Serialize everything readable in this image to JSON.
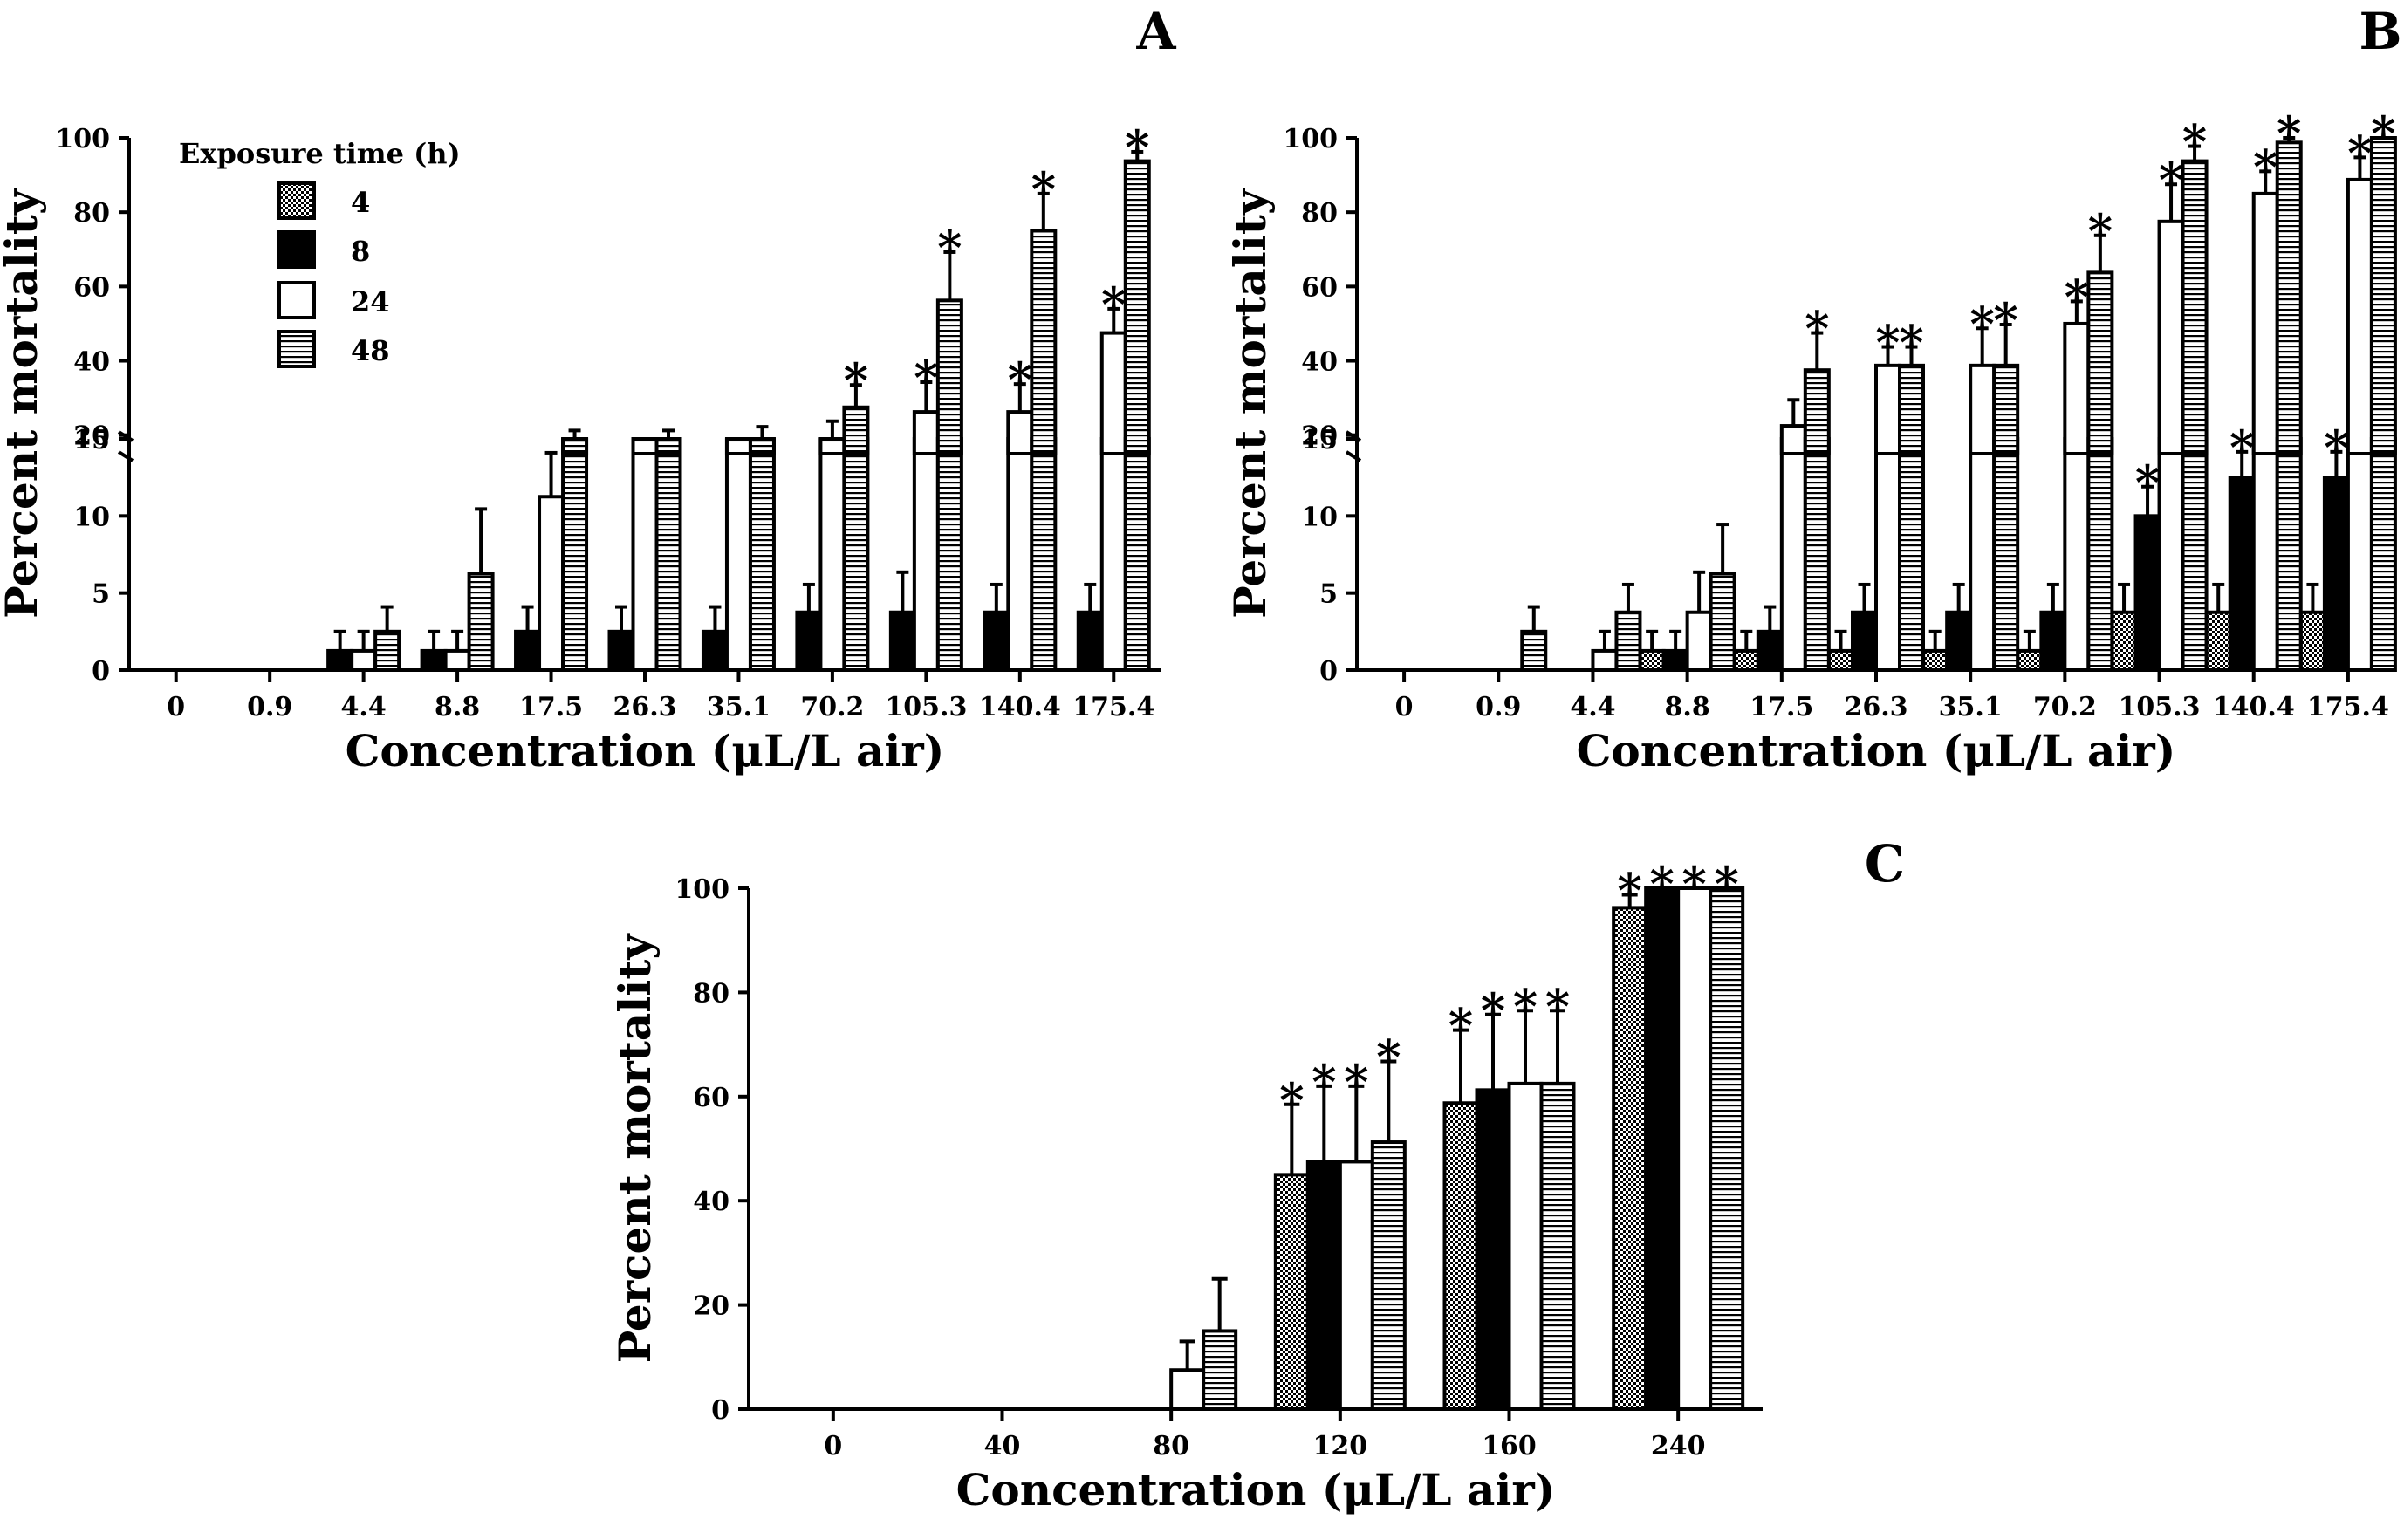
{
  "figure": {
    "legend_title": "Exposure time (h)",
    "series_names": [
      "4",
      "8",
      "24",
      "48"
    ]
  },
  "colors": {
    "ink": "#000000",
    "background": "#ffffff"
  },
  "chart_data": [
    {
      "panel": "A",
      "type": "bar",
      "ylabel": "Percent mortality",
      "xlabel": "Concentration (μL/L air)",
      "y_axis_break": {
        "lower_range": [
          0,
          15
        ],
        "upper_range": [
          15,
          100
        ]
      },
      "lower_ticks": [
        "0",
        "5",
        "10",
        "15"
      ],
      "upper_ticks": [
        "20",
        "40",
        "60",
        "80",
        "100"
      ],
      "categories": [
        "0",
        "0.9",
        "4.4",
        "8.8",
        "17.5",
        "26.3",
        "35.1",
        "70.2",
        "105.3",
        "140.4",
        "175.4"
      ],
      "series": [
        {
          "name": "8",
          "values": [
            0,
            0,
            1.25,
            1.25,
            2.5,
            2.5,
            2.5,
            3.75,
            3.75,
            3.75,
            3.75
          ],
          "errors": [
            0,
            0,
            1.25,
            1.25,
            1.6,
            1.6,
            1.6,
            1.8,
            2.6,
            1.8,
            1.8
          ]
        },
        {
          "name": "24",
          "values": [
            0,
            0,
            1.25,
            1.25,
            11.25,
            18.75,
            18.75,
            18.75,
            26.25,
            26.25,
            47.5
          ],
          "errors": [
            0,
            0,
            1.25,
            1.25,
            4.0,
            0,
            0,
            5.0,
            8.0,
            7.5,
            6.5
          ]
        },
        {
          "name": "48",
          "values": [
            0,
            0,
            2.5,
            6.25,
            18.75,
            18.75,
            18.75,
            27.5,
            56.25,
            75,
            93.75
          ],
          "errors": [
            0,
            0,
            1.6,
            4.2,
            2.5,
            2.5,
            3.5,
            6.0,
            13.0,
            10.0,
            2.5
          ]
        }
      ],
      "significance": {
        "24": [
          false,
          false,
          false,
          false,
          false,
          false,
          false,
          false,
          true,
          true,
          true
        ],
        "48": [
          false,
          false,
          false,
          false,
          false,
          false,
          false,
          true,
          true,
          true,
          true
        ]
      }
    },
    {
      "panel": "B",
      "type": "bar",
      "ylabel": "Percent mortality",
      "xlabel": "Concentration (μL/L air)",
      "y_axis_break": {
        "lower_range": [
          0,
          15
        ],
        "upper_range": [
          15,
          100
        ]
      },
      "lower_ticks": [
        "0",
        "5",
        "10",
        "15"
      ],
      "upper_ticks": [
        "20",
        "40",
        "60",
        "80",
        "100"
      ],
      "categories": [
        "0",
        "0.9",
        "4.4",
        "8.8",
        "17.5",
        "26.3",
        "35.1",
        "70.2",
        "105.3",
        "140.4",
        "175.4"
      ],
      "series": [
        {
          "name": "4",
          "values": [
            0,
            0,
            0,
            1.25,
            1.25,
            1.25,
            1.25,
            1.25,
            3.75,
            3.75,
            3.75
          ],
          "errors": [
            0,
            0,
            0,
            1.25,
            1.25,
            1.25,
            1.25,
            1.25,
            1.8,
            1.8,
            1.8
          ]
        },
        {
          "name": "8",
          "values": [
            0,
            0,
            0,
            1.25,
            2.5,
            3.75,
            3.75,
            3.75,
            10,
            12.5,
            12.5
          ],
          "errors": [
            0,
            0,
            0,
            1.25,
            1.6,
            1.8,
            1.8,
            1.8,
            1.9,
            3.0,
            3.0
          ]
        },
        {
          "name": "24",
          "values": [
            0,
            0,
            1.25,
            3.75,
            22.5,
            38.75,
            38.75,
            50,
            77.5,
            85,
            88.75
          ],
          "errors": [
            0,
            0,
            1.25,
            2.6,
            7.0,
            5.0,
            10.0,
            6.0,
            10.0,
            6.0,
            6.0
          ]
        },
        {
          "name": "48",
          "values": [
            0,
            2.5,
            3.75,
            6.25,
            37.5,
            38.75,
            38.75,
            63.75,
            93.75,
            98.75,
            100
          ],
          "errors": [
            0,
            1.6,
            1.8,
            3.2,
            10.0,
            5.0,
            11.0,
            10.0,
            4.0,
            1.25,
            0
          ]
        }
      ],
      "significance": {
        "8": [
          false,
          false,
          false,
          false,
          false,
          false,
          false,
          false,
          true,
          true,
          true
        ],
        "24": [
          false,
          false,
          false,
          false,
          false,
          true,
          true,
          true,
          true,
          true,
          true
        ],
        "48": [
          false,
          false,
          false,
          false,
          true,
          true,
          true,
          true,
          true,
          true,
          true
        ]
      }
    },
    {
      "panel": "C",
      "type": "bar",
      "ylabel": "Percent mortality",
      "xlabel": "Concentration (μL/L air)",
      "ylim": [
        0,
        100
      ],
      "yticks": [
        "0",
        "20",
        "40",
        "60",
        "80",
        "100"
      ],
      "categories": [
        "0",
        "40",
        "80",
        "120",
        "160",
        "240"
      ],
      "series": [
        {
          "name": "4",
          "values": [
            0,
            0,
            0,
            45,
            58.75,
            96.25
          ],
          "errors": [
            0,
            0,
            0,
            13.5,
            14,
            2.5
          ]
        },
        {
          "name": "8",
          "values": [
            0,
            0,
            0,
            47.5,
            61.25,
            100
          ],
          "errors": [
            0,
            0,
            0,
            14.5,
            14.5,
            0
          ]
        },
        {
          "name": "24",
          "values": [
            0,
            0,
            7.5,
            47.5,
            62.5,
            100
          ],
          "errors": [
            0,
            0,
            5.5,
            14.5,
            14,
            0
          ]
        },
        {
          "name": "48",
          "values": [
            0,
            0,
            15,
            51.25,
            62.5,
            100
          ],
          "errors": [
            0,
            0,
            10,
            15.5,
            14,
            0
          ]
        }
      ],
      "significance": {
        "4": [
          false,
          false,
          false,
          true,
          true,
          true
        ],
        "8": [
          false,
          false,
          false,
          true,
          true,
          true
        ],
        "24": [
          false,
          false,
          false,
          true,
          true,
          true
        ],
        "48": [
          false,
          false,
          false,
          true,
          true,
          true
        ]
      }
    }
  ]
}
